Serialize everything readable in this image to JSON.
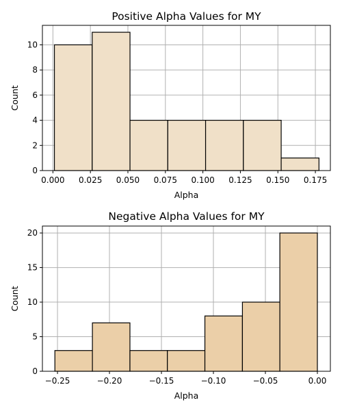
{
  "chart_data": [
    {
      "type": "histogram",
      "title": "Positive Alpha Values for MY",
      "xlabel": "Alpha",
      "ylabel": "Count",
      "bar_color": "#f0e0c8",
      "grid": true,
      "xlim": [
        -0.007,
        0.185
      ],
      "ylim": [
        0,
        11.55
      ],
      "xticks": [
        0.0,
        0.025,
        0.05,
        0.075,
        0.1,
        0.125,
        0.15,
        0.175
      ],
      "xtick_labels": [
        "0.000",
        "0.025",
        "0.050",
        "0.075",
        "0.100",
        "0.125",
        "0.150",
        "0.175"
      ],
      "yticks": [
        0,
        2,
        4,
        6,
        8,
        10
      ],
      "ytick_labels": [
        "0",
        "2",
        "4",
        "6",
        "8",
        "10"
      ],
      "bins": [
        {
          "start": 0.001,
          "end": 0.0262,
          "count": 10
        },
        {
          "start": 0.0262,
          "end": 0.0514,
          "count": 11
        },
        {
          "start": 0.0514,
          "end": 0.0766,
          "count": 4
        },
        {
          "start": 0.0766,
          "end": 0.1018,
          "count": 4
        },
        {
          "start": 0.1018,
          "end": 0.127,
          "count": 4
        },
        {
          "start": 0.127,
          "end": 0.1522,
          "count": 4
        },
        {
          "start": 0.1522,
          "end": 0.1774,
          "count": 1
        }
      ]
    },
    {
      "type": "histogram",
      "title": "Negative Alpha Values for MY",
      "xlabel": "Alpha",
      "ylabel": "Count",
      "bar_color": "#ebcfa8",
      "grid": true,
      "xlim": [
        -0.2645,
        0.0125
      ],
      "ylim": [
        0,
        21
      ],
      "xticks": [
        -0.25,
        -0.2,
        -0.15,
        -0.1,
        -0.05,
        0.0
      ],
      "xtick_labels": [
        "−0.25",
        "−0.20",
        "−0.15",
        "−0.10",
        "−0.05",
        "0.00"
      ],
      "yticks": [
        0,
        5,
        10,
        15,
        20
      ],
      "ytick_labels": [
        "0",
        "5",
        "10",
        "15",
        "20"
      ],
      "bins": [
        {
          "start": -0.2525,
          "end": -0.2164,
          "count": 3
        },
        {
          "start": -0.2164,
          "end": -0.1803,
          "count": 7
        },
        {
          "start": -0.1803,
          "end": -0.1443,
          "count": 3
        },
        {
          "start": -0.1443,
          "end": -0.1082,
          "count": 3
        },
        {
          "start": -0.1082,
          "end": -0.0721,
          "count": 8
        },
        {
          "start": -0.0721,
          "end": -0.0361,
          "count": 10
        },
        {
          "start": -0.0361,
          "end": 0.0,
          "count": 20
        }
      ]
    }
  ]
}
